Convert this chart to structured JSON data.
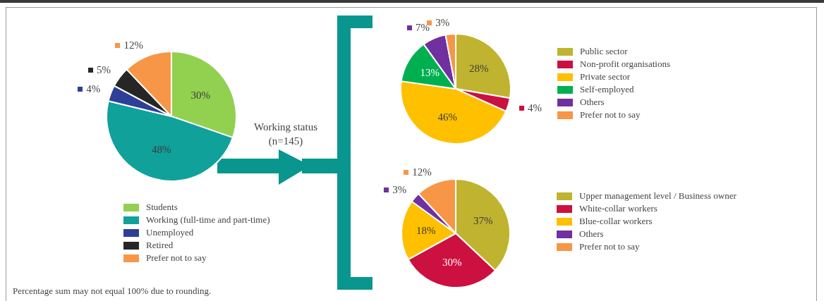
{
  "chart_data": [
    {
      "type": "pie",
      "categories": [
        "Students",
        "Working (full-time and part-time)",
        "Unemployed",
        "Retired",
        "Prefer not to say"
      ],
      "values": [
        30,
        48,
        4,
        5,
        12
      ],
      "colors": [
        "#92d050",
        "#11a19b",
        "#2e3f98",
        "#262626",
        "#f79646"
      ],
      "value_labels": [
        "30%",
        "48%",
        "4%",
        "5%",
        "12%"
      ],
      "legend": "bottom",
      "annotations": [
        "Working status (n=145)",
        "Percentage sum may not equal 100% due to rounding."
      ]
    },
    {
      "type": "pie",
      "categories": [
        "Public sector",
        "Non-profit organisations",
        "Private sector",
        "Self-employed",
        "Others",
        "Prefer not to say"
      ],
      "values": [
        28,
        4,
        46,
        13,
        7,
        3
      ],
      "colors": [
        "#c0b330",
        "#cc1040",
        "#ffc000",
        "#00b050",
        "#7030a0",
        "#f79646"
      ],
      "value_labels": [
        "28%",
        "4%",
        "46%",
        "13%",
        "7%",
        "3%"
      ],
      "legend": "right"
    },
    {
      "type": "pie",
      "categories": [
        "Upper management level / Business owner",
        "White-collar workers",
        "Blue-collar workers",
        "Others",
        "Prefer not to say"
      ],
      "values": [
        37,
        30,
        18,
        3,
        12
      ],
      "colors": [
        "#c0b330",
        "#cc1040",
        "#ffc000",
        "#7030a0",
        "#f79646"
      ],
      "value_labels": [
        "37%",
        "30%",
        "18%",
        "3%",
        "12%"
      ],
      "legend": "right"
    }
  ]
}
